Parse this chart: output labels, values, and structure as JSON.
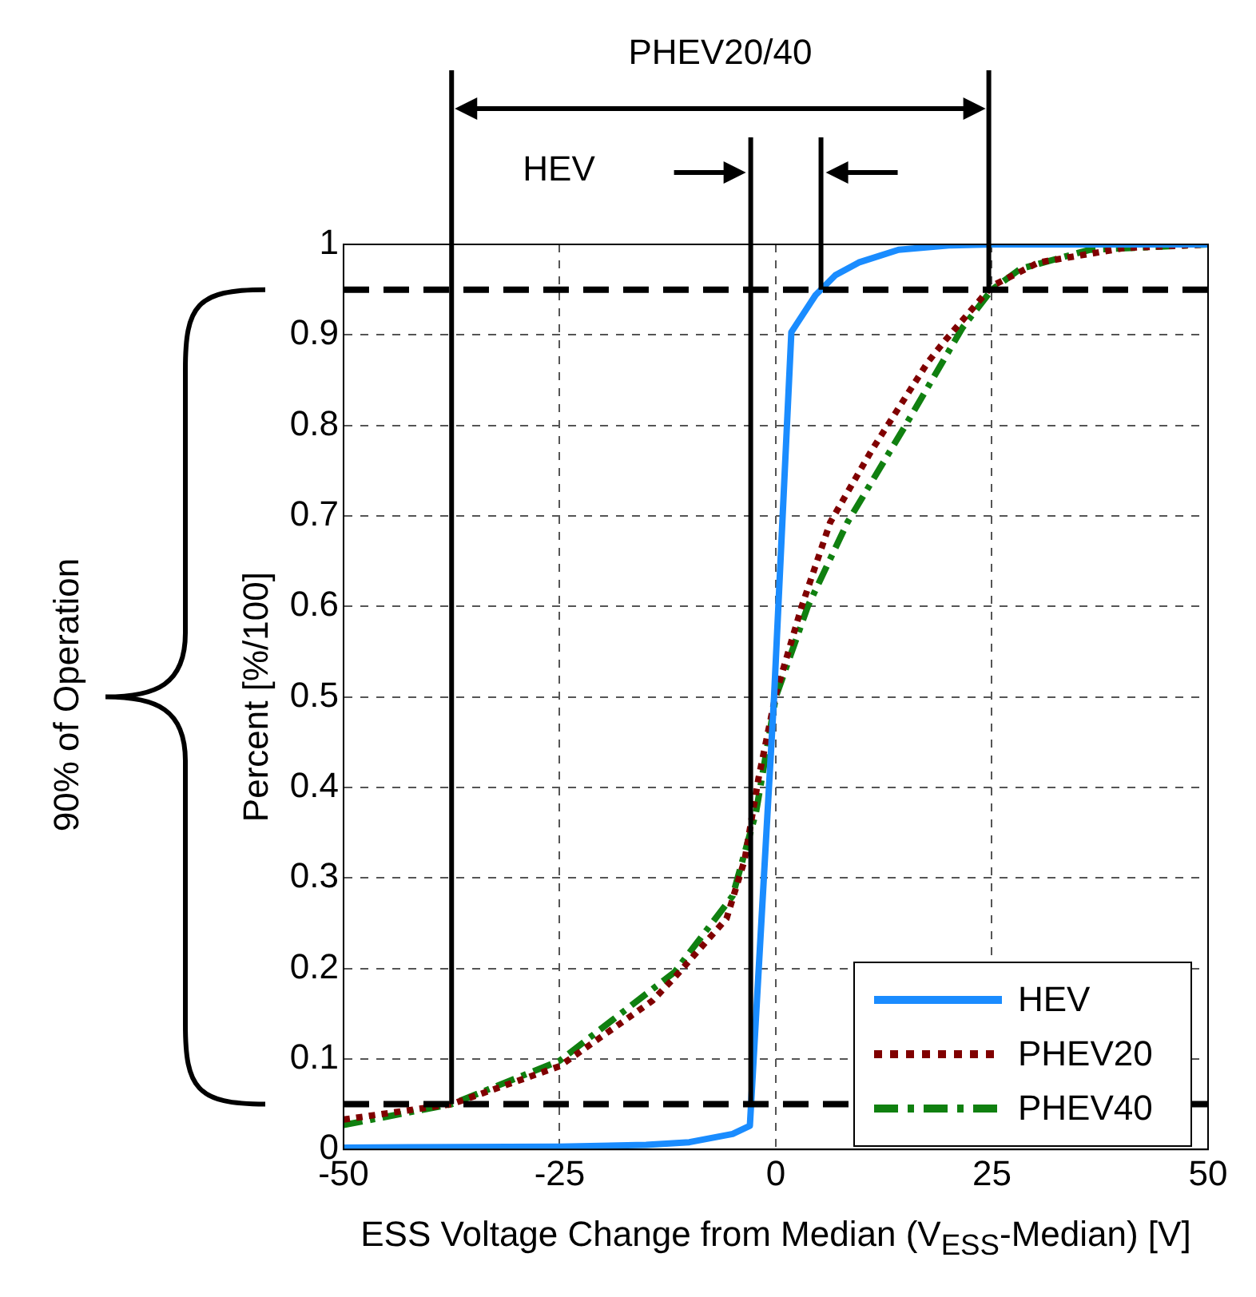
{
  "chart_data": {
    "type": "line",
    "xlabel": "ESS Voltage Change from Median (V$_{ESS}$-Median) [V]",
    "ylabel": "Percent [%/100]",
    "annotations": [
      "PHEV20/40",
      "HEV",
      "90% of Operation"
    ],
    "xlim": [
      -50,
      50
    ],
    "xticks": [
      -50,
      -25,
      0,
      25,
      50
    ],
    "ylim": [
      0,
      1
    ],
    "yticks": [
      0,
      0.1,
      0.2,
      0.3,
      0.4,
      0.5,
      0.6,
      0.7,
      0.8,
      0.9,
      1
    ],
    "grid": true,
    "legend": "bottom right",
    "marker": "none",
    "series": [
      {
        "name": "HEV",
        "color": "#1a8cff",
        "line_style": "solid",
        "x": [
          -50,
          -25,
          -15,
          -10,
          -5,
          -3,
          -0.2,
          1.8,
          4.6,
          6.9,
          9.6,
          14.2,
          20.3,
          25,
          50
        ],
        "values": [
          0.002,
          0.003,
          0.005,
          0.008,
          0.017,
          0.026,
          0.5,
          0.903,
          0.944,
          0.966,
          0.98,
          0.994,
          0.999,
          1,
          1
        ]
      },
      {
        "name": "PHEV20",
        "color": "#800000",
        "line_style": "dotted",
        "x": [
          -50,
          -37.5,
          -25,
          -14.3,
          -11.7,
          -5.7,
          -3.6,
          -2,
          0,
          3,
          6.3,
          11,
          17.6,
          19.6,
          25,
          30.4,
          40.3,
          50
        ],
        "values": [
          0.033,
          0.05,
          0.092,
          0.164,
          0.19,
          0.255,
          0.32,
          0.41,
          0.503,
          0.6,
          0.693,
          0.771,
          0.87,
          0.894,
          0.954,
          0.98,
          0.996,
          1
        ]
      },
      {
        "name": "PHEV40",
        "color": "#108010",
        "line_style": "dashed",
        "x": [
          -50,
          -37.5,
          -25,
          -11.7,
          -5,
          -2.3,
          0,
          3.7,
          8.3,
          15,
          21.6,
          25,
          28.3,
          36.3,
          50
        ],
        "values": [
          0.027,
          0.05,
          0.098,
          0.196,
          0.28,
          0.372,
          0.5,
          0.6,
          0.693,
          0.8,
          0.908,
          0.95,
          0.973,
          0.994,
          1
        ]
      }
    ],
    "ref_lines": [
      {
        "axis": "y",
        "value": 0.95,
        "color": "#000000",
        "line_style": "dashed"
      },
      {
        "axis": "y",
        "value": 0.05,
        "color": "#000000",
        "line_style": "dashed"
      },
      {
        "axis": "x",
        "value": -37.5,
        "color": "#000000",
        "line_style": "solid"
      },
      {
        "axis": "x",
        "value": -2.9,
        "color": "#000000",
        "line_style": "solid"
      }
    ]
  }
}
